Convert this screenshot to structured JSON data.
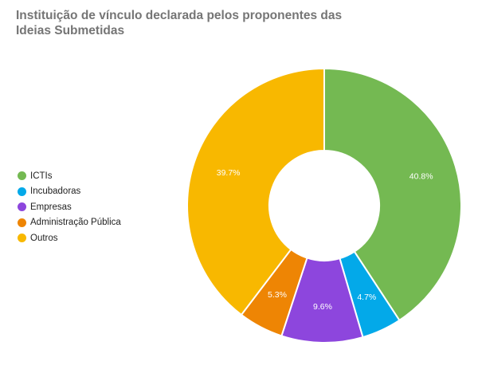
{
  "chart_data": {
    "type": "pie",
    "title": "Instituição de vínculo declarada pelos proponentes das Ideias Submetidas",
    "donut": true,
    "legend_position": "left",
    "slices": [
      {
        "label": "ICTIs",
        "value": 40.8,
        "value_label": "40.8%",
        "color": "#74b952"
      },
      {
        "label": "Incubadoras",
        "value": 4.7,
        "value_label": "4.7%",
        "color": "#03a9e9"
      },
      {
        "label": "Empresas",
        "value": 9.6,
        "value_label": "9.6%",
        "color": "#8d46dd"
      },
      {
        "label": "Administração Pública",
        "value": 5.3,
        "value_label": "5.3%",
        "color": "#ee8504"
      },
      {
        "label": "Outros",
        "value": 39.7,
        "value_label": "39.7%",
        "color": "#f8b800"
      }
    ]
  }
}
